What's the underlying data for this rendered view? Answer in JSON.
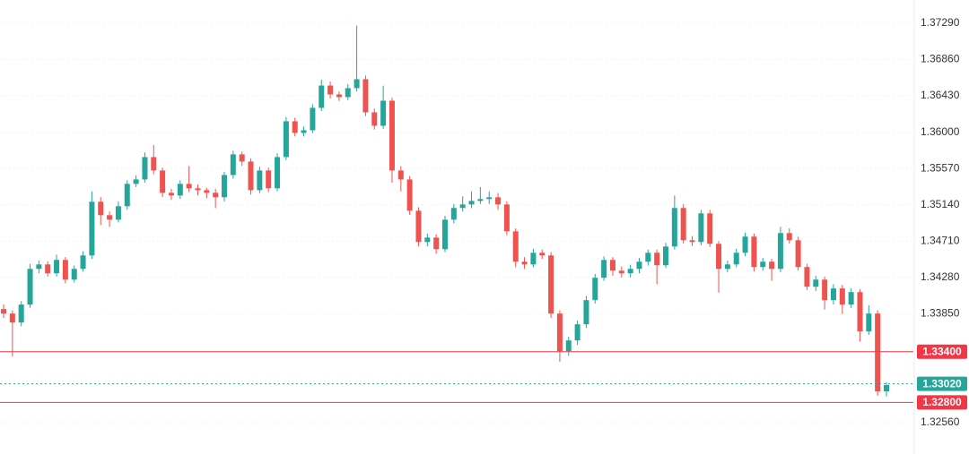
{
  "chart_data": {
    "type": "candlestick",
    "up_color": "#26a69a",
    "down_color": "#ef5350",
    "grid": true,
    "ylim": [
      1.32189,
      1.37565
    ],
    "yticks": [
      {
        "value": 1.3729,
        "label": "1.37290"
      },
      {
        "value": 1.3686,
        "label": "1.36860"
      },
      {
        "value": 1.3643,
        "label": "1.36430"
      },
      {
        "value": 1.36,
        "label": "1.36000"
      },
      {
        "value": 1.3557,
        "label": "1.35570"
      },
      {
        "value": 1.3514,
        "label": "1.35140"
      },
      {
        "value": 1.3471,
        "label": "1.34710"
      },
      {
        "value": 1.3428,
        "label": "1.34280"
      },
      {
        "value": 1.3385,
        "label": "1.33850"
      },
      {
        "value": 1.3256,
        "label": "1.32560"
      }
    ],
    "price_lines": [
      {
        "value": 1.334,
        "label": "1.33400",
        "color": "#f23645",
        "style": "solid"
      },
      {
        "value": 1.3302,
        "label": "1.33020",
        "color": "#26a69a",
        "style": "dotted"
      },
      {
        "value": 1.328,
        "label": "1.32800",
        "color": "#f23645",
        "style": "solid"
      }
    ],
    "open": [
      1.33905,
      1.33852,
      1.33746,
      1.33958,
      1.34381,
      1.34434,
      1.34329,
      1.34487,
      1.34254,
      1.34381,
      1.3454,
      1.35176,
      1.35017,
      1.34964,
      1.35123,
      1.35388,
      1.3544,
      1.35705,
      1.35546,
      1.35282,
      1.3525,
      1.35388,
      1.35335,
      1.35313,
      1.35282,
      1.35229,
      1.35493,
      1.35737,
      1.35652,
      1.35313,
      1.35546,
      1.35335,
      1.35705,
      1.36129,
      1.35991,
      1.36023,
      1.36288,
      1.36552,
      1.36447,
      1.36415,
      1.36521,
      1.36627,
      1.36235,
      1.36076,
      1.36372,
      1.35546,
      1.3544,
      1.3507,
      1.34699,
      1.34752,
      1.34614,
      1.34964,
      1.35102,
      1.35144,
      1.35186,
      1.35208,
      1.35229,
      1.35144,
      1.34826,
      1.34466,
      1.34434,
      1.34572,
      1.3454,
      1.33852,
      1.33407,
      1.33534,
      1.33725,
      1.34011,
      1.34276,
      1.34487,
      1.3436,
      1.34329,
      1.34381,
      1.34466,
      1.34572,
      1.34424,
      1.34646,
      1.35102,
      1.3472,
      1.34699,
      1.35038,
      1.34678,
      1.34381,
      1.34434,
      1.34572,
      1.34763,
      1.34403,
      1.34466,
      1.34381,
      1.34805,
      1.3472,
      1.34403,
      1.3417,
      1.34254,
      1.34011,
      1.34149,
      1.33958,
      1.34106,
      1.3364,
      1.33852,
      1.32931
    ],
    "high": [
      1.3396,
      1.3389,
      1.34,
      1.3444,
      1.3448,
      1.3447,
      1.3455,
      1.3452,
      1.3442,
      1.3459,
      1.353,
      1.3523,
      1.3506,
      1.3518,
      1.3543,
      1.3549,
      1.3576,
      1.3585,
      1.3558,
      1.3533,
      1.3543,
      1.356,
      1.3538,
      1.3534,
      1.3533,
      1.3553,
      1.3578,
      1.3577,
      1.3569,
      1.3559,
      1.3558,
      1.3575,
      1.3618,
      1.3617,
      1.3607,
      1.3633,
      1.3662,
      1.366,
      1.3648,
      1.3657,
      1.37262,
      1.3667,
      1.3628,
      1.3655,
      1.3641,
      1.356,
      1.3548,
      1.3511,
      1.348,
      1.3479,
      1.3501,
      1.3515,
      1.3524,
      1.353,
      1.3535,
      1.353,
      1.3528,
      1.3518,
      1.3486,
      1.3452,
      1.3462,
      1.3461,
      1.3458,
      1.3389,
      1.3358,
      1.3377,
      1.3406,
      1.3432,
      1.3453,
      1.3452,
      1.3441,
      1.3443,
      1.3451,
      1.3461,
      1.3461,
      1.3469,
      1.3525,
      1.3515,
      1.3477,
      1.3508,
      1.3508,
      1.3471,
      1.3448,
      1.3462,
      1.3481,
      1.348,
      1.3451,
      1.345,
      1.3488,
      1.3486,
      1.3476,
      1.3444,
      1.343,
      1.3429,
      1.342,
      1.3419,
      1.3415,
      1.3414,
      1.3395,
      1.3389,
      1.3304
    ],
    "low": [
      1.338,
      1.33344,
      1.337,
      1.3392,
      1.3433,
      1.3429,
      1.3429,
      1.3421,
      1.3422,
      1.3435,
      1.345,
      1.349,
      1.3488,
      1.3493,
      1.3508,
      1.3535,
      1.354,
      1.355,
      1.3523,
      1.352,
      1.3521,
      1.3529,
      1.3525,
      1.3522,
      1.351,
      1.3518,
      1.3545,
      1.356,
      1.3526,
      1.3528,
      1.3529,
      1.353,
      1.3567,
      1.3595,
      1.3595,
      1.3599,
      1.3625,
      1.364,
      1.3637,
      1.3638,
      1.3648,
      1.3619,
      1.3603,
      1.3604,
      1.354,
      1.353,
      1.3502,
      1.3465,
      1.3465,
      1.3456,
      1.3458,
      1.3492,
      1.3506,
      1.351,
      1.3515,
      1.3515,
      1.3508,
      1.3478,
      1.344,
      1.3438,
      1.344,
      1.345,
      1.338,
      1.3328,
      1.3335,
      1.3348,
      1.3368,
      1.3397,
      1.3424,
      1.343,
      1.3428,
      1.3428,
      1.3433,
      1.3442,
      1.342,
      1.3439,
      1.3461,
      1.3468,
      1.3465,
      1.3466,
      1.3464,
      1.341,
      1.3434,
      1.344,
      1.3453,
      1.3435,
      1.3436,
      1.3424,
      1.3434,
      1.3468,
      1.3436,
      1.3413,
      1.3412,
      1.339,
      1.3396,
      1.3385,
      1.3392,
      1.3352,
      1.336,
      1.3288,
      1.3287
    ],
    "close": [
      1.33852,
      1.33746,
      1.33958,
      1.34381,
      1.34434,
      1.34329,
      1.34487,
      1.34254,
      1.34381,
      1.3454,
      1.35176,
      1.35017,
      1.34964,
      1.35123,
      1.35388,
      1.3544,
      1.35705,
      1.35546,
      1.35282,
      1.3525,
      1.35388,
      1.35335,
      1.35313,
      1.35282,
      1.35229,
      1.35493,
      1.35737,
      1.35652,
      1.35313,
      1.35546,
      1.35335,
      1.35705,
      1.36129,
      1.35991,
      1.36023,
      1.36288,
      1.36552,
      1.36447,
      1.36415,
      1.36521,
      1.36627,
      1.36235,
      1.36076,
      1.36372,
      1.35546,
      1.3544,
      1.3507,
      1.34699,
      1.34752,
      1.34614,
      1.34964,
      1.35102,
      1.35144,
      1.35186,
      1.35208,
      1.35229,
      1.35144,
      1.34826,
      1.34466,
      1.34434,
      1.34572,
      1.3454,
      1.33852,
      1.33407,
      1.33534,
      1.33725,
      1.34011,
      1.34276,
      1.34487,
      1.3436,
      1.34329,
      1.34381,
      1.34466,
      1.34572,
      1.34424,
      1.34646,
      1.35102,
      1.3472,
      1.34699,
      1.35038,
      1.34678,
      1.34381,
      1.34434,
      1.34572,
      1.34763,
      1.34403,
      1.34466,
      1.34381,
      1.34805,
      1.3472,
      1.34403,
      1.3417,
      1.34254,
      1.34011,
      1.34149,
      1.33958,
      1.34106,
      1.3364,
      1.33852,
      1.32931,
      1.33005
    ]
  }
}
